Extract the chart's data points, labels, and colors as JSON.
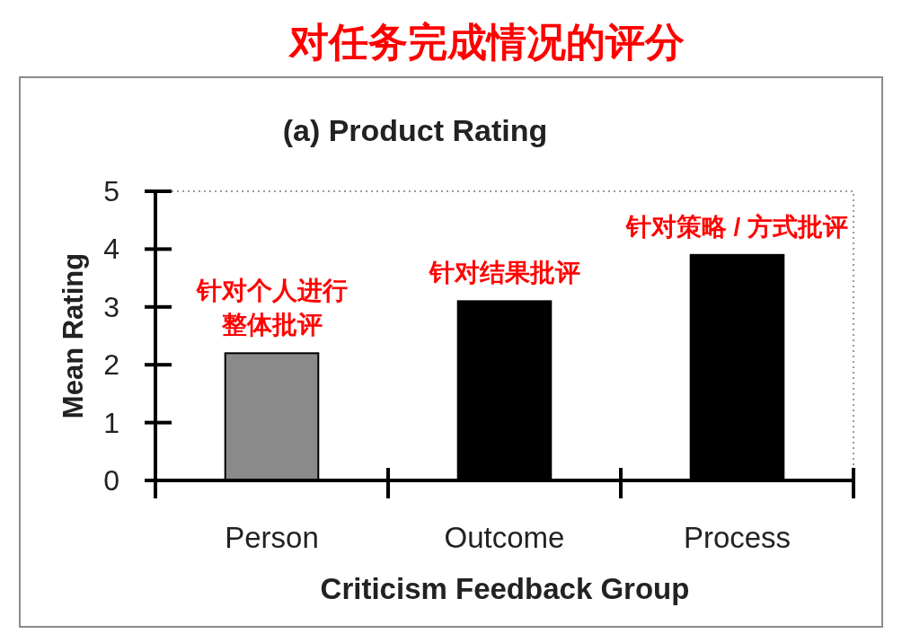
{
  "chart_data": {
    "type": "bar",
    "title": "对任务完成情况的评分",
    "subtitle": "(a) Product Rating",
    "xlabel": "Criticism Feedback Group",
    "ylabel": "Mean Rating",
    "categories": [
      "Person",
      "Outcome",
      "Process"
    ],
    "values": [
      2.2,
      3.1,
      3.9
    ],
    "colors": [
      "#8a8a8a",
      "#000000",
      "#000000"
    ],
    "ylim": [
      0,
      5
    ],
    "yticks": [
      0,
      1,
      2,
      3,
      4,
      5
    ],
    "annotations": [
      {
        "text": "针对个人进行整体批评",
        "x": "Person",
        "y": 2.2
      },
      {
        "text": "针对结果批评",
        "x": "Outcome",
        "y": 3.1
      },
      {
        "text": "针对策略 / 方式批评",
        "x": "Process",
        "y": 3.9
      }
    ]
  }
}
